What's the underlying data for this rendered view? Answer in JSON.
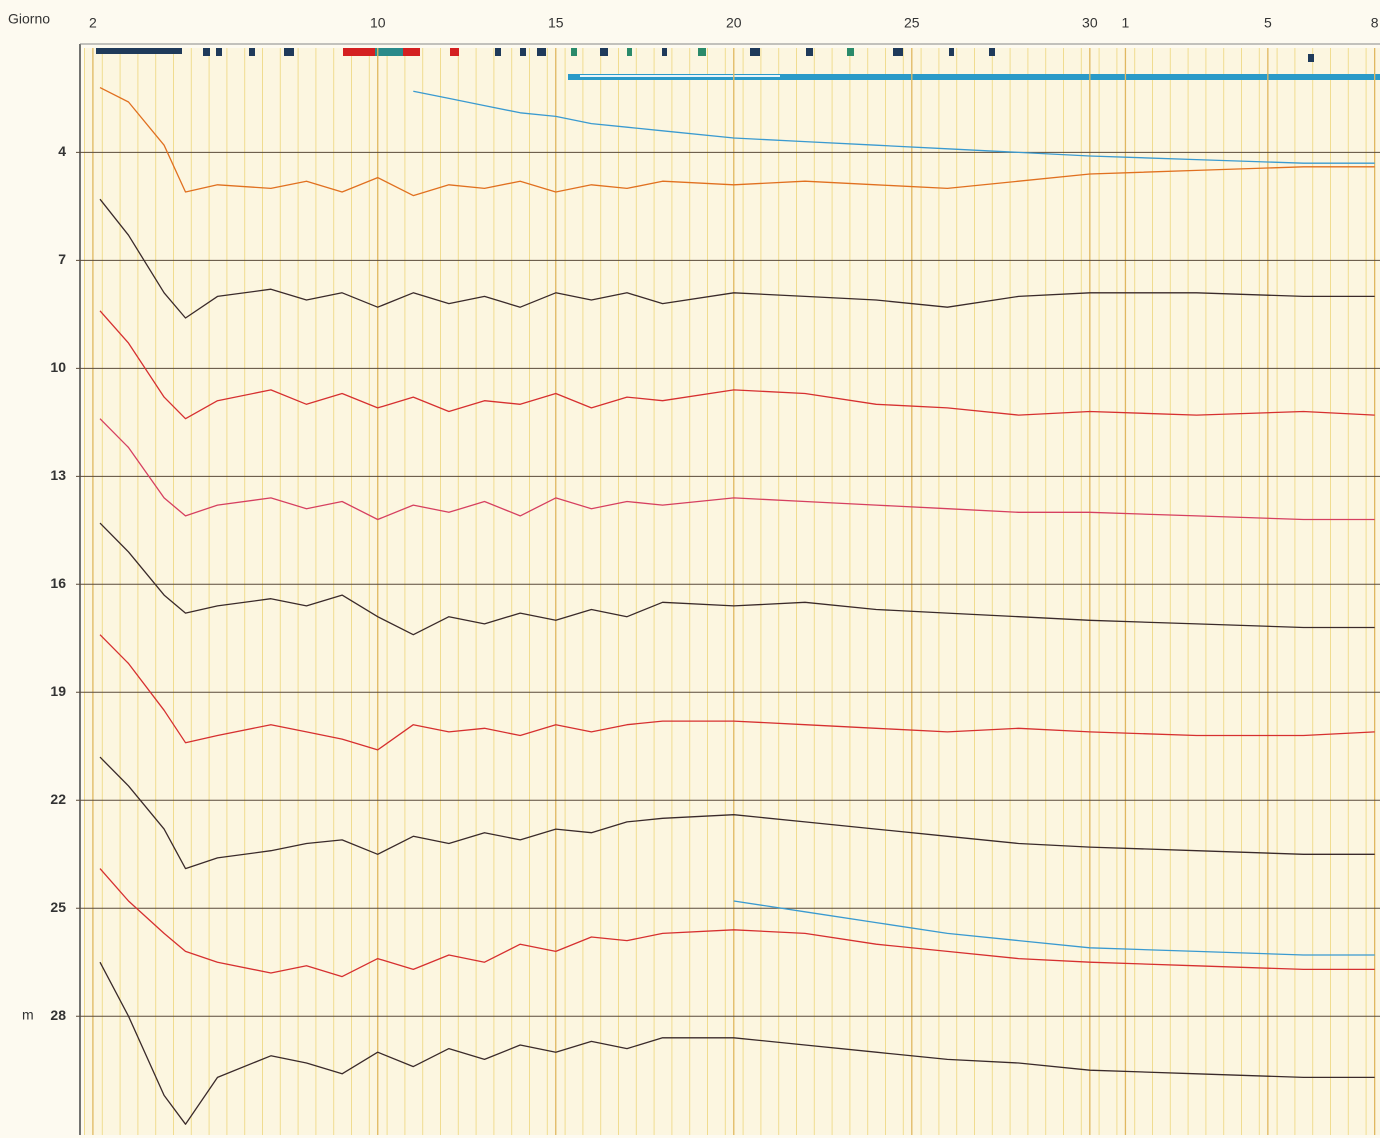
{
  "chart_data": {
    "type": "line",
    "x_label": "Giorno",
    "y_label": "m",
    "xlim": [
      1.75,
      38.15
    ],
    "ylim": [
      1.1,
      31.3
    ],
    "y_inverted": true,
    "grid": true,
    "xticks": [
      2,
      10,
      15,
      20,
      25,
      30,
      {
        "value": 31,
        "label": "1"
      },
      {
        "value": 35,
        "label": "5"
      },
      {
        "value": 38,
        "label": "8"
      }
    ],
    "yticks": [
      4,
      7,
      10,
      13,
      16,
      19,
      22,
      25,
      28
    ],
    "x": [
      2.2,
      3,
      4,
      4.6,
      5.5,
      7,
      8,
      9,
      10,
      11,
      12,
      13,
      14,
      15,
      16,
      17,
      18,
      20,
      22,
      24,
      26,
      28,
      30,
      33,
      36,
      38
    ],
    "series": [
      {
        "color": "#e07020",
        "values": [
          2.2,
          2.6,
          3.8,
          5.1,
          4.9,
          5.0,
          4.8,
          5.1,
          4.7,
          5.2,
          4.9,
          5.0,
          4.8,
          5.1,
          4.9,
          5.0,
          4.8,
          4.9,
          4.8,
          4.9,
          5.0,
          4.8,
          4.6,
          4.5,
          4.4,
          4.4
        ]
      },
      {
        "color": "#3a2a2a",
        "values": [
          5.3,
          6.3,
          7.9,
          8.6,
          8.0,
          7.8,
          8.1,
          7.9,
          8.3,
          7.9,
          8.2,
          8.0,
          8.3,
          7.9,
          8.1,
          7.9,
          8.2,
          7.9,
          8.0,
          8.1,
          8.3,
          8.0,
          7.9,
          7.9,
          8.0,
          8.0
        ]
      },
      {
        "color": "#d63030",
        "values": [
          8.4,
          9.3,
          10.8,
          11.4,
          10.9,
          10.6,
          11.0,
          10.7,
          11.1,
          10.8,
          11.2,
          10.9,
          11.0,
          10.7,
          11.1,
          10.8,
          10.9,
          10.6,
          10.7,
          11.0,
          11.1,
          11.3,
          11.2,
          11.3,
          11.2,
          11.3
        ]
      },
      {
        "color": "#d64060",
        "values": [
          11.4,
          12.2,
          13.6,
          14.1,
          13.8,
          13.6,
          13.9,
          13.7,
          14.2,
          13.8,
          14.0,
          13.7,
          14.1,
          13.6,
          13.9,
          13.7,
          13.8,
          13.6,
          13.7,
          13.8,
          13.9,
          14.0,
          14.0,
          14.1,
          14.2,
          14.2
        ]
      },
      {
        "color": "#3a2a2a",
        "values": [
          14.3,
          15.1,
          16.3,
          16.8,
          16.6,
          16.4,
          16.6,
          16.3,
          16.9,
          17.4,
          16.9,
          17.1,
          16.8,
          17.0,
          16.7,
          16.9,
          16.5,
          16.6,
          16.5,
          16.7,
          16.8,
          16.9,
          17.0,
          17.1,
          17.2,
          17.2
        ]
      },
      {
        "color": "#d63030",
        "values": [
          17.4,
          18.2,
          19.5,
          20.4,
          20.2,
          19.9,
          20.1,
          20.3,
          20.6,
          19.9,
          20.1,
          20.0,
          20.2,
          19.9,
          20.1,
          19.9,
          19.8,
          19.8,
          19.9,
          20.0,
          20.1,
          20.0,
          20.1,
          20.2,
          20.2,
          20.1
        ]
      },
      {
        "color": "#3a2a2a",
        "values": [
          20.8,
          21.6,
          22.8,
          23.9,
          23.6,
          23.4,
          23.2,
          23.1,
          23.5,
          23.0,
          23.2,
          22.9,
          23.1,
          22.8,
          22.9,
          22.6,
          22.5,
          22.4,
          22.6,
          22.8,
          23.0,
          23.2,
          23.3,
          23.4,
          23.5,
          23.5
        ]
      },
      {
        "color": "#d63030",
        "values": [
          23.9,
          24.8,
          25.7,
          26.2,
          26.5,
          26.8,
          26.6,
          26.9,
          26.4,
          26.7,
          26.3,
          26.5,
          26.0,
          26.2,
          25.8,
          25.9,
          25.7,
          25.6,
          25.7,
          26.0,
          26.2,
          26.4,
          26.5,
          26.6,
          26.7,
          26.7
        ]
      },
      {
        "color": "#3a2a2a",
        "values": [
          26.5,
          28.0,
          30.2,
          31.0,
          29.7,
          29.1,
          29.3,
          29.6,
          29.0,
          29.4,
          28.9,
          29.2,
          28.8,
          29.0,
          28.7,
          28.9,
          28.6,
          28.6,
          28.8,
          29.0,
          29.2,
          29.3,
          29.5,
          29.6,
          29.7,
          29.7
        ]
      },
      {
        "color": "#3a9ad0",
        "values": [
          null,
          null,
          null,
          null,
          null,
          null,
          null,
          null,
          null,
          2.3,
          2.5,
          2.7,
          2.9,
          3.0,
          3.2,
          3.3,
          3.4,
          3.6,
          3.7,
          3.8,
          3.9,
          4.0,
          4.1,
          4.2,
          4.3,
          4.3
        ]
      },
      {
        "color": "#3a9ad0",
        "values": [
          null,
          null,
          null,
          null,
          null,
          null,
          null,
          null,
          null,
          null,
          null,
          null,
          null,
          null,
          null,
          null,
          null,
          24.8,
          25.1,
          25.4,
          25.7,
          25.9,
          26.1,
          26.2,
          26.3,
          26.3
        ]
      }
    ]
  }
}
